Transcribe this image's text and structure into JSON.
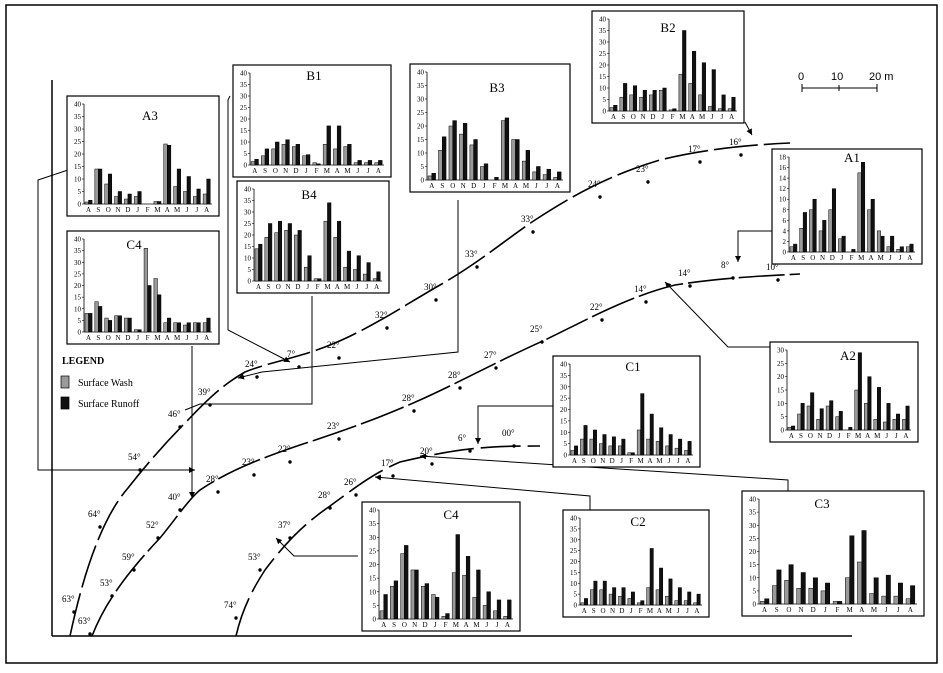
{
  "colors": {
    "wash": "#9a9a9a",
    "runoff": "#111111",
    "line": "#000000",
    "frame": "#000000"
  },
  "months": [
    "A",
    "S",
    "O",
    "N",
    "D",
    "J",
    "F",
    "M",
    "A",
    "M",
    "J",
    "J",
    "A"
  ],
  "legend": {
    "title": "LEGEND",
    "items": [
      "Surface Wash",
      "Surface Runoff"
    ]
  },
  "scale_bar": {
    "ticks": [
      "0",
      "10",
      "20 m"
    ]
  },
  "charts": [
    {
      "name": "A3",
      "ymax": 40,
      "yticks": [
        "0",
        "5",
        "10",
        "15",
        "20",
        "25",
        "30",
        "35",
        "40"
      ],
      "wash": [
        0.8,
        14,
        8,
        3,
        2,
        3,
        0,
        1,
        24,
        7,
        5,
        3,
        4
      ],
      "runoff": [
        1.5,
        14,
        12,
        5,
        4,
        5,
        0,
        1,
        23.5,
        14,
        11,
        6,
        10
      ]
    },
    {
      "name": "B1",
      "ymax": 40,
      "yticks": [
        "0",
        "5",
        "10",
        "15",
        "20",
        "25",
        "30",
        "35",
        "40"
      ],
      "wash": [
        1.5,
        4,
        7,
        9,
        8,
        4,
        1,
        9,
        7,
        8,
        1,
        1,
        1
      ],
      "runoff": [
        2.5,
        7,
        10,
        11,
        9,
        4.5,
        0.5,
        17,
        17,
        9,
        2,
        2,
        2
      ]
    },
    {
      "name": "B3",
      "ymax": 40,
      "yticks": [
        "0",
        "5",
        "10",
        "15",
        "20",
        "25",
        "30",
        "35",
        "40"
      ],
      "wash": [
        1.5,
        11,
        20,
        17,
        13,
        5,
        0,
        22,
        15,
        7,
        3,
        2,
        1
      ],
      "runoff": [
        2.5,
        16,
        22,
        21,
        15,
        6,
        1,
        23,
        15,
        11,
        5,
        4,
        3
      ]
    },
    {
      "name": "B2",
      "ymax": 40,
      "yticks": [
        "0",
        "5",
        "10",
        "15",
        "20",
        "25",
        "30",
        "35",
        "40"
      ],
      "wash": [
        1.5,
        6,
        7,
        6,
        7,
        9,
        0.5,
        16,
        12,
        7,
        2,
        1,
        1
      ],
      "runoff": [
        2.5,
        12,
        11,
        9,
        9,
        10,
        1,
        35,
        26,
        21,
        18,
        7,
        6
      ]
    },
    {
      "name": "A1",
      "ymax": 18,
      "yticks": [
        "0",
        "2",
        "4",
        "6",
        "8",
        "10",
        "12",
        "14",
        "16",
        "18"
      ],
      "wash": [
        1,
        4.5,
        8,
        4,
        8,
        2.5,
        0,
        15,
        8,
        4,
        1,
        0.5,
        1
      ],
      "runoff": [
        1.5,
        7.5,
        10,
        6,
        12,
        3,
        0.5,
        17,
        10,
        3,
        3,
        1,
        1.5
      ]
    },
    {
      "name": "B4",
      "ymax": 40,
      "yticks": [
        "0",
        "5",
        "10",
        "15",
        "20",
        "25",
        "30",
        "35",
        "40"
      ],
      "wash": [
        14,
        19,
        21,
        22,
        20,
        6,
        1,
        26,
        19,
        6,
        5,
        3,
        1
      ],
      "runoff": [
        16,
        25,
        26,
        25,
        22,
        11,
        1,
        34,
        26,
        13,
        11,
        8,
        4
      ]
    },
    {
      "name": "C4",
      "ymax": 40,
      "yticks": [
        "0",
        "5",
        "10",
        "15",
        "20",
        "25",
        "30",
        "35",
        "40"
      ],
      "wash": [
        8,
        13,
        6,
        7,
        6,
        1,
        36,
        23,
        4,
        4,
        3,
        4,
        4
      ],
      "runoff": [
        8,
        11,
        5,
        7,
        6,
        1,
        20,
        16,
        6,
        4,
        4,
        4,
        6
      ]
    },
    {
      "name": "A2",
      "ymax": 30,
      "yticks": [
        "0",
        "5",
        "10",
        "15",
        "20",
        "25",
        "30"
      ],
      "wash": [
        1,
        6,
        9,
        4,
        9,
        5,
        0,
        15,
        10,
        4,
        3,
        4,
        4
      ],
      "runoff": [
        1.5,
        10,
        14,
        8,
        11,
        7,
        1,
        29,
        20,
        16,
        10,
        6,
        9
      ]
    },
    {
      "name": "C1",
      "ymax": 40,
      "yticks": [
        "0",
        "5",
        "10",
        "15",
        "20",
        "25",
        "30",
        "35",
        "40"
      ],
      "wash": [
        2,
        7,
        7,
        5,
        4,
        4,
        1,
        11,
        7,
        6,
        4,
        3,
        2
      ],
      "runoff": [
        4,
        13,
        11,
        9,
        8,
        7,
        1,
        27,
        18,
        12,
        9,
        7,
        6
      ]
    },
    {
      "name": "C4",
      "ymax": 40,
      "yticks": [
        "0",
        "5",
        "10",
        "15",
        "20",
        "25",
        "30",
        "35",
        "40"
      ],
      "wash": [
        3,
        12,
        24,
        18,
        12,
        9,
        1,
        17,
        16,
        8,
        5,
        3,
        1
      ],
      "runoff": [
        9,
        14,
        27,
        18,
        13,
        8,
        2,
        31,
        23,
        18,
        10,
        7,
        7
      ]
    },
    {
      "name": "C2",
      "ymax": 40,
      "yticks": [
        "0",
        "5",
        "10",
        "15",
        "20",
        "25",
        "30",
        "35",
        "40"
      ],
      "wash": [
        1,
        7,
        7,
        5,
        4,
        3,
        1,
        8,
        7,
        4,
        2,
        2,
        1
      ],
      "runoff": [
        3,
        11,
        11,
        8,
        8,
        6,
        2,
        26,
        17,
        12,
        8,
        6,
        5
      ]
    },
    {
      "name": "C3",
      "ymax": 40,
      "yticks": [
        "0",
        "5",
        "10",
        "15",
        "20",
        "25",
        "30",
        "35",
        "40"
      ],
      "wash": [
        1,
        7,
        9,
        6,
        6,
        5,
        1,
        10,
        16,
        4,
        3,
        3,
        2
      ],
      "runoff": [
        2,
        13,
        15,
        12,
        10,
        8,
        1,
        26,
        28,
        10,
        11,
        8,
        7
      ]
    }
  ],
  "slope_labels": {
    "B": [
      "63°",
      "64°",
      "54°",
      "46°",
      "39°",
      "24°",
      "7°",
      "22°",
      "32°",
      "30°",
      "33°",
      "33°",
      "24°",
      "23°",
      "17°",
      "16°"
    ],
    "A": [
      "63°",
      "53°",
      "59°",
      "52°",
      "40°",
      "28°",
      "23°",
      "22°",
      "23°",
      "28°",
      "28°",
      "27°",
      "25°",
      "22°",
      "14°",
      "14°",
      "8°",
      "10°"
    ],
    "C": [
      "74°",
      "53°",
      "37°",
      "28°",
      "26°",
      "17°",
      "20°",
      "6°",
      "00°"
    ]
  }
}
